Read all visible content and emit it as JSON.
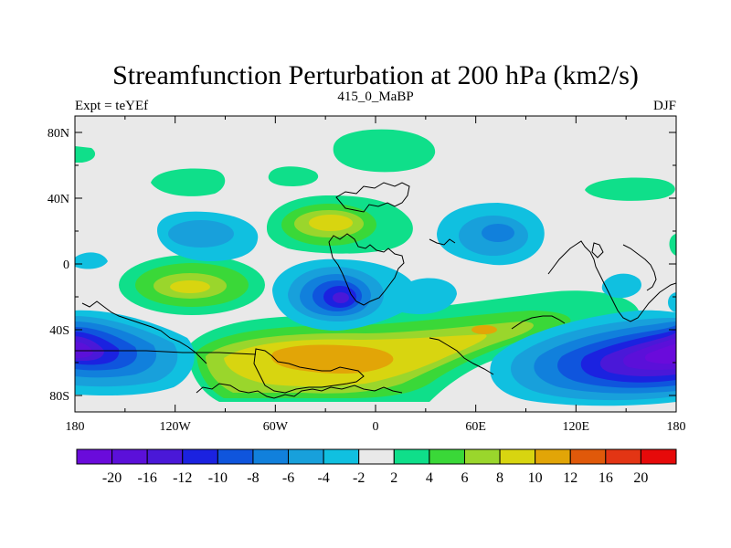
{
  "chart_data": {
    "type": "heatmap",
    "title": "Streamfunction Perturbation at 200 hPa (km2/s)",
    "left_label": "Expt = teYEf",
    "center_label": "415_0_MaBP",
    "right_label": "DJF",
    "x_ticks": [
      "180",
      "120W",
      "60W",
      "0",
      "60E",
      "120E",
      "180"
    ],
    "x_tick_values": [
      -180,
      -120,
      -60,
      0,
      60,
      120,
      180
    ],
    "y_ticks": [
      "80N",
      "40N",
      "0",
      "40S",
      "80S"
    ],
    "y_tick_values": [
      80,
      40,
      0,
      -40,
      -80
    ],
    "xlim": [
      -180,
      180
    ],
    "ylim": [
      -90,
      90
    ],
    "colorbar": {
      "labels": [
        "-20",
        "-16",
        "-12",
        "-10",
        "-8",
        "-6",
        "-4",
        "-2",
        "2",
        "4",
        "6",
        "8",
        "10",
        "12",
        "16",
        "20"
      ],
      "levels": [
        -20,
        -16,
        -12,
        -10,
        -8,
        -6,
        -4,
        -2,
        2,
        4,
        6,
        8,
        10,
        12,
        16,
        20
      ],
      "colors": [
        "#6a0bdb",
        "#5b10d9",
        "#4a18d8",
        "#1b22e0",
        "#0f55dd",
        "#1180dc",
        "#18a0db",
        "#10c0e0",
        "#e9e9e9",
        "#0fdf8a",
        "#3ad838",
        "#9ad62c",
        "#d8d510",
        "#e2a507",
        "#e0590a",
        "#e33514",
        "#e60a0a"
      ]
    },
    "features": [
      {
        "name": "south-pacific-low",
        "lon": -180,
        "lat": -56,
        "value": -16
      },
      {
        "name": "south-indian-low",
        "lon": 158,
        "lat": -55,
        "value": -18
      },
      {
        "name": "south-atlantic-low",
        "lon": -18,
        "lat": -24,
        "value": -12
      },
      {
        "name": "north-pacific-low",
        "lon": -130,
        "lat": 18,
        "value": -6
      },
      {
        "name": "north-africa-low",
        "lon": 55,
        "lat": 18,
        "value": -8
      },
      {
        "name": "southern-ocean-high",
        "lon": -40,
        "lat": -60,
        "value": 10
      },
      {
        "name": "north-atlantic-high",
        "lon": -28,
        "lat": 25,
        "value": 8
      },
      {
        "name": "tropical-pacific-high",
        "lon": -105,
        "lat": -18,
        "value": 8
      },
      {
        "name": "arctic-high",
        "lon": -20,
        "lat": 67,
        "value": 4
      },
      {
        "name": "south-atlantic-high",
        "lon": 60,
        "lat": -42,
        "value": 10
      }
    ]
  }
}
